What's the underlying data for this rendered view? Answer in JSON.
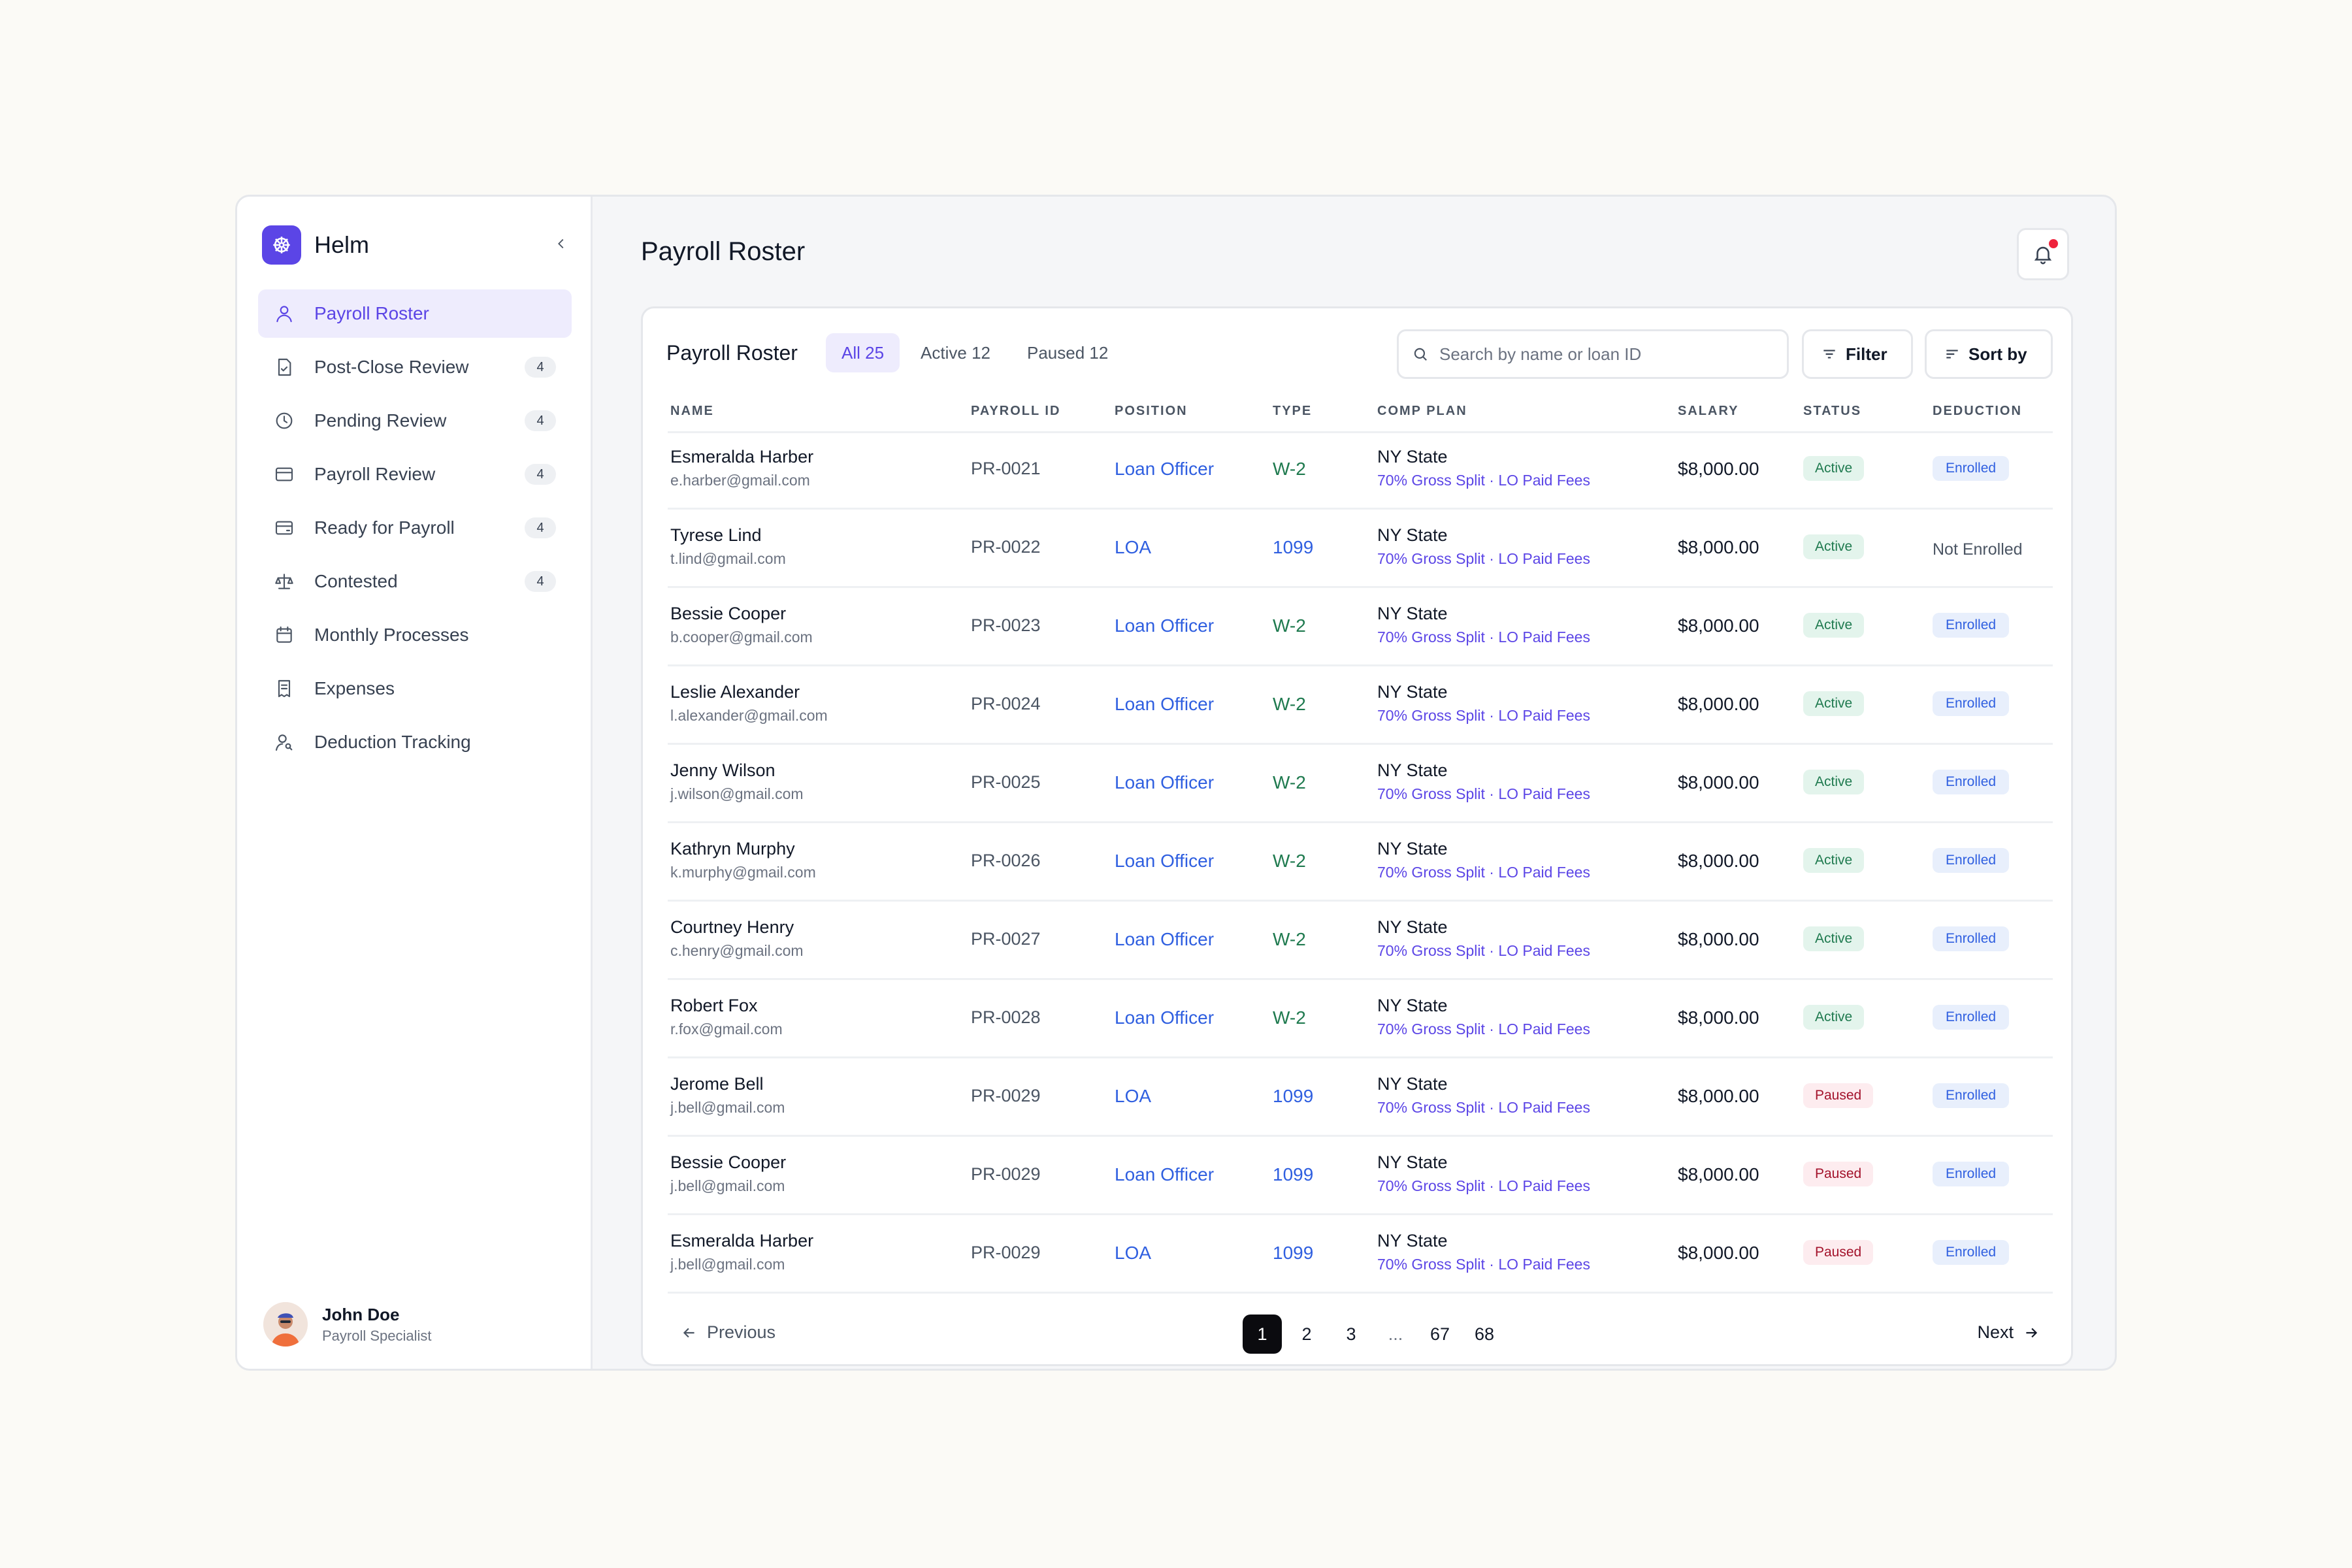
{
  "app": {
    "name": "Helm"
  },
  "sidebar": {
    "items": [
      {
        "label": "Payroll Roster",
        "icon": "user-icon",
        "badge": "",
        "active": true
      },
      {
        "label": "Post-Close Review",
        "icon": "document-check-icon",
        "badge": "4"
      },
      {
        "label": "Pending Review",
        "icon": "clock-icon",
        "badge": "4"
      },
      {
        "label": "Payroll Review",
        "icon": "credit-card-icon",
        "badge": "4"
      },
      {
        "label": "Ready for Payroll",
        "icon": "wallet-icon",
        "badge": "4"
      },
      {
        "label": "Contested",
        "icon": "scale-icon",
        "badge": "4"
      },
      {
        "label": "Monthly Processes",
        "icon": "calendar-icon",
        "badge": ""
      },
      {
        "label": "Expenses",
        "icon": "receipt-icon",
        "badge": ""
      },
      {
        "label": "Deduction Tracking",
        "icon": "user-search-icon",
        "badge": ""
      }
    ],
    "user": {
      "name": "John Doe",
      "role": "Payroll Specialist"
    }
  },
  "header": {
    "title": "Payroll Roster"
  },
  "card": {
    "title": "Payroll Roster",
    "tabs": [
      {
        "label": "All 25",
        "active": true
      },
      {
        "label": "Active 12"
      },
      {
        "label": "Paused 12"
      }
    ],
    "search": {
      "placeholder": "Search by name or loan ID",
      "value": ""
    },
    "filter_label": "Filter",
    "sort_label": "Sort by"
  },
  "table": {
    "columns": [
      "NAME",
      "PAYROLL ID",
      "POSITION",
      "TYPE",
      "COMP PLAN",
      "SALARY",
      "STATUS",
      "DEDUCTION"
    ],
    "rows": [
      {
        "name": "Esmeralda Harber",
        "email": "e.harber@gmail.com",
        "id": "PR-0021",
        "position": "Loan Officer",
        "type": "W-2",
        "state": "NY State",
        "plan": "70% Gross Split · LO Paid Fees",
        "salary": "$8,000.00",
        "status": "Active",
        "deduction": "Enrolled"
      },
      {
        "name": "Tyrese Lind",
        "email": "t.lind@gmail.com",
        "id": "PR-0022",
        "position": "LOA",
        "type": "1099",
        "state": "NY State",
        "plan": "70% Gross Split · LO Paid Fees",
        "salary": "$8,000.00",
        "status": "Active",
        "deduction": "Not Enrolled"
      },
      {
        "name": "Bessie Cooper",
        "email": "b.cooper@gmail.com",
        "id": "PR-0023",
        "position": "Loan Officer",
        "type": "W-2",
        "state": "NY State",
        "plan": "70% Gross Split · LO Paid Fees",
        "salary": "$8,000.00",
        "status": "Active",
        "deduction": "Enrolled"
      },
      {
        "name": "Leslie Alexander",
        "email": "l.alexander@gmail.com",
        "id": "PR-0024",
        "position": "Loan Officer",
        "type": "W-2",
        "state": "NY State",
        "plan": "70% Gross Split · LO Paid Fees",
        "salary": "$8,000.00",
        "status": "Active",
        "deduction": "Enrolled"
      },
      {
        "name": "Jenny Wilson",
        "email": "j.wilson@gmail.com",
        "id": "PR-0025",
        "position": "Loan Officer",
        "type": "W-2",
        "state": "NY State",
        "plan": "70% Gross Split · LO Paid Fees",
        "salary": "$8,000.00",
        "status": "Active",
        "deduction": "Enrolled"
      },
      {
        "name": "Kathryn Murphy",
        "email": "k.murphy@gmail.com",
        "id": "PR-0026",
        "position": "Loan Officer",
        "type": "W-2",
        "state": "NY State",
        "plan": "70% Gross Split · LO Paid Fees",
        "salary": "$8,000.00",
        "status": "Active",
        "deduction": "Enrolled"
      },
      {
        "name": "Courtney Henry",
        "email": "c.henry@gmail.com",
        "id": "PR-0027",
        "position": "Loan Officer",
        "type": "W-2",
        "state": "NY State",
        "plan": "70% Gross Split · LO Paid Fees",
        "salary": "$8,000.00",
        "status": "Active",
        "deduction": "Enrolled"
      },
      {
        "name": "Robert Fox",
        "email": "r.fox@gmail.com",
        "id": "PR-0028",
        "position": "Loan Officer",
        "type": "W-2",
        "state": "NY State",
        "plan": "70% Gross Split · LO Paid Fees",
        "salary": "$8,000.00",
        "status": "Active",
        "deduction": "Enrolled"
      },
      {
        "name": "Jerome Bell",
        "email": "j.bell@gmail.com",
        "id": "PR-0029",
        "position": "LOA",
        "type": "1099",
        "state": "NY State",
        "plan": "70% Gross Split · LO Paid Fees",
        "salary": "$8,000.00",
        "status": "Paused",
        "deduction": "Enrolled"
      },
      {
        "name": "Bessie Cooper",
        "email": "j.bell@gmail.com",
        "id": "PR-0029",
        "position": "Loan Officer",
        "type": "1099",
        "state": "NY State",
        "plan": "70% Gross Split · LO Paid Fees",
        "salary": "$8,000.00",
        "status": "Paused",
        "deduction": "Enrolled"
      },
      {
        "name": "Esmeralda Harber",
        "email": "j.bell@gmail.com",
        "id": "PR-0029",
        "position": "LOA",
        "type": "1099",
        "state": "NY State",
        "plan": "70% Gross Split · LO Paid Fees",
        "salary": "$8,000.00",
        "status": "Paused",
        "deduction": "Enrolled"
      }
    ]
  },
  "pagination": {
    "prev_label": "Previous",
    "next_label": "Next",
    "pages": [
      "1",
      "2",
      "3",
      "...",
      "67",
      "68"
    ],
    "current": "1"
  },
  "colors": {
    "accent": "#5b45e6",
    "link_blue": "#2f5fe0",
    "active_green": "#1f7a4f",
    "paused_red": "#a3122b",
    "notification_dot": "#ef233c"
  }
}
